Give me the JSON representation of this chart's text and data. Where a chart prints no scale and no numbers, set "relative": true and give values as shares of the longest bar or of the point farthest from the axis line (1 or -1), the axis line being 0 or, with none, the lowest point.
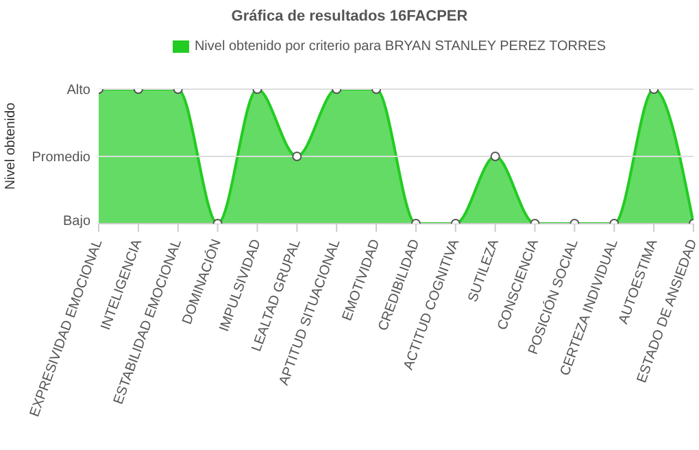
{
  "chart_data": {
    "type": "area",
    "title": "Gráfica de resultados 16FACPER",
    "ylabel": "Nivel obtenido",
    "categories": [
      "EXPRESIVIDAD EMOCIONAL",
      "INTELIGENCIA",
      "ESTABILIDAD EMOCIONAL",
      "DOMINACIÓN",
      "IMPULSIVIDAD",
      "LEALTAD GRUPAL",
      "APTITUD SITUACIONAL",
      "EMOTIVIDAD",
      "CREDIBILIDAD",
      "ACTITUD COGNITIVA",
      "SUTILEZA",
      "CONSCIENCIA",
      "POSICIÓN SOCIAL",
      "CERTEZA INDIVIDUAL",
      "AUTOESTIMA",
      "ESTADO DE ANSIEDAD"
    ],
    "series": [
      {
        "name": "Nivel obtenido por criterio para BRYAN STANLEY PEREZ TORRES",
        "color": "#22cc22",
        "values": [
          1,
          1,
          1,
          0,
          1,
          0.5,
          1,
          1,
          0,
          0,
          0.5,
          0,
          0,
          0,
          1,
          0
        ]
      }
    ],
    "relative": true,
    "ref_lines": [
      {
        "axis": "y",
        "value": 1,
        "label": "Alto",
        "color": "#dddddd"
      },
      {
        "axis": "y",
        "value": 0.5,
        "label": "Promedio",
        "color": "#dddddd"
      }
    ],
    "annotations": [
      "Bajo"
    ],
    "legend": "top",
    "marker": "circle"
  }
}
